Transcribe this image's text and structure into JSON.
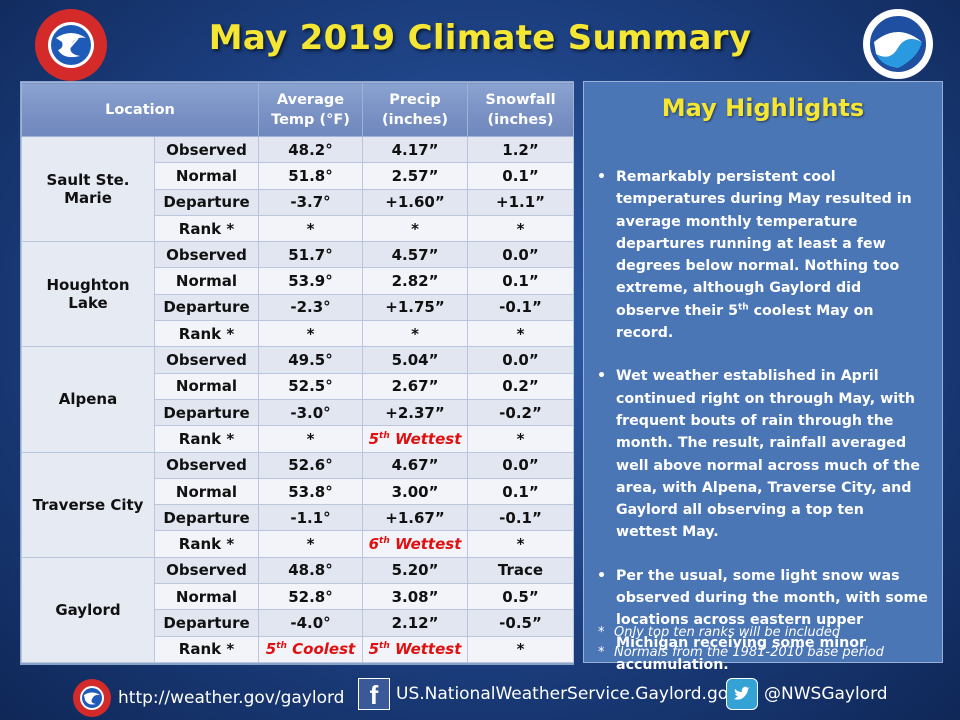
{
  "title": "May 2019 Climate Summary",
  "table": {
    "headers": [
      "Location",
      "Average Temp (°F)",
      "Precip (inches)",
      "Snowfall (inches)"
    ],
    "header_lines": [
      [
        "Location"
      ],
      [
        "Average",
        "Temp (°F)"
      ],
      [
        "Precip",
        "(inches)"
      ],
      [
        "Snowfall",
        "(inches)"
      ]
    ],
    "row_labels": [
      "Observed",
      "Normal",
      "Departure",
      "Rank *"
    ],
    "locations": [
      {
        "name": "Sault Ste. Marie",
        "rows": [
          [
            "48.2°",
            "4.17”",
            "1.2”"
          ],
          [
            "51.8°",
            "2.57”",
            "0.1”"
          ],
          [
            "-3.7°",
            "+1.60”",
            "+1.1”"
          ],
          [
            "*",
            "*",
            "*"
          ]
        ]
      },
      {
        "name": "Houghton Lake",
        "name_lines": [
          "Houghton",
          "Lake"
        ],
        "rows": [
          [
            "51.7°",
            "4.57”",
            "0.0”"
          ],
          [
            "53.9°",
            "2.82”",
            "0.1”"
          ],
          [
            "-2.3°",
            "+1.75”",
            "-0.1”"
          ],
          [
            "*",
            "*",
            "*"
          ]
        ]
      },
      {
        "name": "Alpena",
        "rows": [
          [
            "49.5°",
            "5.04”",
            "0.0”"
          ],
          [
            "52.5°",
            "2.67”",
            "0.2”"
          ],
          [
            "-3.0°",
            "+2.37”",
            "-0.2”"
          ],
          [
            "*",
            "5th Wettest",
            "*"
          ]
        ]
      },
      {
        "name": "Traverse City",
        "rows": [
          [
            "52.6°",
            "4.67”",
            "0.0”"
          ],
          [
            "53.8°",
            "3.00”",
            "0.1”"
          ],
          [
            "-1.1°",
            "+1.67”",
            "-0.1”"
          ],
          [
            "*",
            "6th Wettest",
            "*"
          ]
        ]
      },
      {
        "name": "Gaylord",
        "rows": [
          [
            "48.8°",
            "5.20”",
            "Trace"
          ],
          [
            "52.8°",
            "3.08”",
            "0.5”"
          ],
          [
            "-4.0°",
            "2.12”",
            "-0.5”"
          ],
          [
            "5th Coolest",
            "5th Wettest",
            "*"
          ]
        ]
      }
    ]
  },
  "highlights": {
    "title": "May Highlights",
    "bullets": [
      "Remarkably persistent cool temperatures during May resulted in average monthly temperature departures running at least a few degrees below normal.  Nothing too extreme, although Gaylord did observe their 5th coolest May on record.",
      "Wet weather established in April continued right on through May, with frequent bouts of rain through the month. The result, rainfall averaged well above normal across much of the area, with Alpena, Traverse City, and Gaylord all observing a top ten wettest May.",
      "Per the usual, some light snow was observed during the month, with some locations across eastern upper Michigan receiving some minor accumulation."
    ],
    "notes": [
      "Only top ten ranks will be included",
      "Normals from the 1981-2010 base period"
    ]
  },
  "footer": {
    "website": "http://weather.gov/gaylord",
    "facebook": "US.NationalWeatherService.Gaylord.gov",
    "twitter": "@NWSGaylord"
  },
  "colors": {
    "title": "#f5e633",
    "rank_highlight": "#e01010",
    "facebook": "#3b5998",
    "twitter": "#35a2d6"
  },
  "icons": [
    "nws-logo",
    "noaa-logo",
    "facebook-icon",
    "twitter-icon"
  ]
}
